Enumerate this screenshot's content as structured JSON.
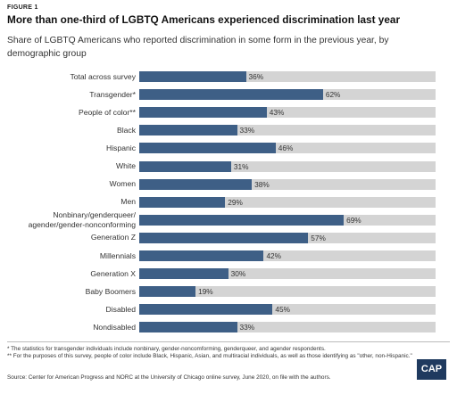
{
  "figure_label": "FIGURE 1",
  "chart_data": {
    "type": "bar",
    "orientation": "horizontal",
    "title": "More than one-third of LGBTQ Americans experienced discrimination last year",
    "subtitle": "Share of LGBTQ Americans who reported discrimination in some form in the previous year, by demographic group",
    "categories": [
      "Total across survey",
      "Transgender*",
      "People of color**",
      "Black",
      "Hispanic",
      "White",
      "Women",
      "Men",
      "Nonbinary/genderqueer/\nagender/gender-nonconforming",
      "Generation Z",
      "Millennials",
      "Generation X",
      "Baby Boomers",
      "Disabled",
      "Nondisabled"
    ],
    "values": [
      36,
      62,
      43,
      33,
      46,
      31,
      38,
      29,
      69,
      57,
      42,
      30,
      19,
      45,
      33
    ],
    "value_labels": [
      "36%",
      "62%",
      "43%",
      "33%",
      "46%",
      "31%",
      "38%",
      "29%",
      "69%",
      "57%",
      "42%",
      "30%",
      "19%",
      "45%",
      "33%"
    ],
    "color": "#3e5f86",
    "track_color": "#d4d4d4",
    "xlim": [
      0,
      100
    ]
  },
  "notes": [
    "* The statistics for transgender individuals include nonbinary, gender-noncomforming, genderqueer, and agender respondents.",
    "** For the purposes of this survey, people of color include Black, Hispanic, Asian, and multiracial individuals, as well as those identifying as \"other, non-Hispanic.\""
  ],
  "source": "Source: Center for American Progress and NORC at the University of Chicago online survey, June 2020, on file with the authors.",
  "logo": "CAP"
}
